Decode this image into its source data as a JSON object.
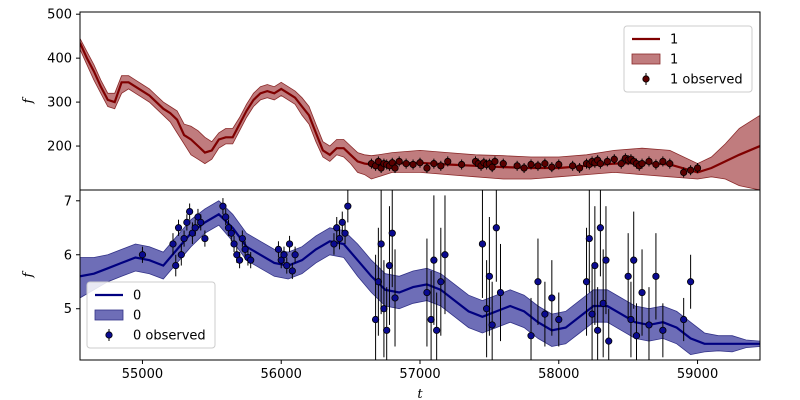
{
  "chart_data": [
    {
      "type": "line",
      "panel": "top",
      "xlabel": "",
      "ylabel": "f",
      "xlim": [
        54550,
        59450
      ],
      "ylim": [
        100,
        505
      ],
      "yticks": [
        200,
        300,
        400,
        500
      ],
      "show_x_ticklabels": false,
      "legend_position": "top-right",
      "legend": [
        "1",
        "1",
        "1 observed"
      ],
      "colors": {
        "line": "#7f0000",
        "band": "#b56567",
        "band_edge": "#8b2a2a",
        "marker": "#5a0000"
      },
      "series": [
        {
          "name": "1",
          "kind": "mean",
          "x": [
            54550,
            54600,
            54650,
            54700,
            54750,
            54800,
            54850,
            54900,
            54950,
            55000,
            55050,
            55100,
            55150,
            55200,
            55250,
            55300,
            55350,
            55400,
            55450,
            55500,
            55550,
            55600,
            55650,
            55700,
            55750,
            55800,
            55850,
            55900,
            55950,
            56000,
            56050,
            56100,
            56150,
            56200,
            56250,
            56300,
            56350,
            56400,
            56450,
            56500,
            56550,
            56600,
            56650,
            56700,
            56800,
            57000,
            57200,
            57400,
            57600,
            57800,
            58000,
            58200,
            58400,
            58600,
            58800,
            59000,
            59100,
            59200,
            59300,
            59450
          ],
          "y": [
            435,
            400,
            370,
            335,
            305,
            300,
            345,
            345,
            335,
            325,
            315,
            300,
            285,
            275,
            260,
            225,
            215,
            200,
            185,
            190,
            215,
            220,
            220,
            250,
            280,
            305,
            320,
            325,
            320,
            330,
            320,
            310,
            290,
            270,
            230,
            190,
            180,
            195,
            195,
            180,
            165,
            160,
            158,
            157,
            160,
            162,
            158,
            155,
            152,
            150,
            150,
            155,
            160,
            162,
            158,
            140,
            150,
            165,
            180,
            200
          ]
        },
        {
          "name": "1",
          "kind": "band",
          "x": [
            54550,
            54600,
            54650,
            54700,
            54750,
            54800,
            54850,
            54900,
            54950,
            55000,
            55050,
            55100,
            55150,
            55200,
            55250,
            55300,
            55350,
            55400,
            55450,
            55500,
            55550,
            55600,
            55650,
            55700,
            55750,
            55800,
            55850,
            55900,
            55950,
            56000,
            56050,
            56100,
            56150,
            56200,
            56250,
            56300,
            56350,
            56400,
            56450,
            56500,
            56550,
            56600,
            56650,
            56700,
            56800,
            57000,
            57200,
            57400,
            57600,
            57800,
            58000,
            58200,
            58400,
            58600,
            58800,
            59000,
            59100,
            59200,
            59300,
            59450
          ],
          "lower": [
            420,
            385,
            350,
            320,
            290,
            285,
            320,
            330,
            320,
            310,
            300,
            285,
            270,
            255,
            230,
            205,
            180,
            170,
            160,
            170,
            195,
            205,
            205,
            235,
            265,
            290,
            305,
            310,
            305,
            315,
            305,
            295,
            270,
            250,
            210,
            175,
            165,
            180,
            175,
            160,
            140,
            135,
            125,
            130,
            140,
            140,
            135,
            130,
            125,
            125,
            130,
            135,
            140,
            135,
            130,
            125,
            130,
            125,
            110,
            100
          ],
          "upper": [
            445,
            415,
            385,
            350,
            320,
            320,
            360,
            360,
            350,
            340,
            330,
            315,
            300,
            290,
            280,
            250,
            245,
            235,
            220,
            210,
            230,
            240,
            240,
            265,
            295,
            320,
            335,
            340,
            335,
            345,
            335,
            325,
            310,
            290,
            250,
            210,
            200,
            215,
            215,
            200,
            185,
            180,
            178,
            180,
            185,
            190,
            185,
            180,
            178,
            175,
            175,
            180,
            190,
            195,
            190,
            160,
            175,
            205,
            240,
            270
          ]
        },
        {
          "name": "1 observed",
          "kind": "observed",
          "x": [
            56650,
            56680,
            56700,
            56720,
            56740,
            56760,
            56780,
            56800,
            56820,
            56850,
            56900,
            56950,
            57000,
            57050,
            57100,
            57150,
            57200,
            57300,
            57400,
            57420,
            57440,
            57460,
            57480,
            57500,
            57520,
            57540,
            57600,
            57700,
            57750,
            57800,
            57850,
            57900,
            57950,
            58000,
            58100,
            58150,
            58200,
            58220,
            58240,
            58260,
            58280,
            58300,
            58350,
            58400,
            58450,
            58480,
            58500,
            58520,
            58540,
            58560,
            58580,
            58600,
            58650,
            58700,
            58750,
            58800,
            58900,
            58950,
            59000
          ],
          "y": [
            160,
            155,
            165,
            150,
            160,
            158,
            155,
            162,
            150,
            165,
            160,
            158,
            162,
            150,
            160,
            155,
            165,
            158,
            165,
            160,
            155,
            162,
            158,
            160,
            152,
            165,
            160,
            155,
            150,
            158,
            155,
            160,
            152,
            158,
            155,
            150,
            160,
            158,
            165,
            162,
            168,
            160,
            165,
            170,
            160,
            172,
            168,
            170,
            165,
            160,
            155,
            160,
            165,
            158,
            165,
            160,
            140,
            145,
            150
          ]
        }
      ]
    },
    {
      "type": "line",
      "panel": "bottom",
      "xlabel": "t",
      "ylabel": "f",
      "xlim": [
        54550,
        59450
      ],
      "ylim": [
        4.05,
        7.2
      ],
      "yticks": [
        5,
        6,
        7
      ],
      "xticks": [
        55000,
        56000,
        57000,
        58000,
        59000
      ],
      "show_x_ticklabels": true,
      "legend_position": "lower-left",
      "legend": [
        "0",
        "0",
        "0 observed"
      ],
      "colors": {
        "line": "#000080",
        "band": "#5555aa",
        "band_edge": "#333388",
        "marker": "#0a0a90"
      },
      "series": [
        {
          "name": "0",
          "kind": "mean",
          "x": [
            54550,
            54650,
            54750,
            54850,
            54950,
            55050,
            55150,
            55250,
            55350,
            55450,
            55550,
            55650,
            55750,
            55850,
            55950,
            56050,
            56150,
            56250,
            56350,
            56450,
            56550,
            56650,
            56750,
            56850,
            56950,
            57050,
            57150,
            57250,
            57350,
            57450,
            57550,
            57650,
            57750,
            57850,
            57950,
            58050,
            58150,
            58250,
            58350,
            58450,
            58550,
            58650,
            58750,
            58850,
            58950,
            59050,
            59150,
            59250,
            59350,
            59450
          ],
          "y": [
            5.6,
            5.65,
            5.75,
            5.85,
            5.95,
            5.9,
            5.8,
            6.1,
            6.4,
            6.6,
            6.75,
            6.5,
            6.15,
            6.0,
            5.85,
            5.8,
            5.9,
            6.1,
            6.25,
            6.2,
            5.9,
            5.6,
            5.35,
            5.3,
            5.4,
            5.45,
            5.35,
            5.15,
            4.95,
            4.85,
            4.95,
            5.05,
            4.95,
            4.75,
            4.6,
            4.65,
            4.85,
            5.05,
            5.05,
            4.9,
            4.75,
            4.7,
            4.75,
            4.65,
            4.45,
            4.35,
            4.35,
            4.35,
            4.35,
            4.35
          ]
        },
        {
          "name": "0",
          "kind": "band",
          "x": [
            54550,
            54650,
            54750,
            54850,
            54950,
            55050,
            55150,
            55250,
            55350,
            55450,
            55550,
            55650,
            55750,
            55850,
            55950,
            56050,
            56150,
            56250,
            56350,
            56450,
            56550,
            56650,
            56750,
            56850,
            56950,
            57050,
            57150,
            57250,
            57350,
            57450,
            57550,
            57650,
            57750,
            57850,
            57950,
            58050,
            58150,
            58250,
            58350,
            58450,
            58550,
            58650,
            58750,
            58850,
            58950,
            59050,
            59150,
            59250,
            59350,
            59450
          ],
          "lower": [
            5.2,
            5.35,
            5.5,
            5.6,
            5.7,
            5.65,
            5.55,
            5.85,
            6.15,
            6.4,
            6.55,
            6.25,
            5.9,
            5.75,
            5.6,
            5.55,
            5.65,
            5.85,
            6.0,
            5.95,
            5.6,
            5.3,
            5.05,
            5.0,
            5.1,
            5.15,
            5.05,
            4.85,
            4.65,
            4.55,
            4.65,
            4.75,
            4.65,
            4.45,
            4.3,
            4.35,
            4.55,
            4.75,
            4.75,
            4.6,
            4.45,
            4.4,
            4.45,
            4.35,
            4.15,
            4.2,
            4.22,
            4.2,
            4.28,
            4.3
          ],
          "upper": [
            5.95,
            5.95,
            6.0,
            6.1,
            6.2,
            6.15,
            6.05,
            6.35,
            6.65,
            6.85,
            7.0,
            6.75,
            6.4,
            6.25,
            6.1,
            6.05,
            6.15,
            6.35,
            6.5,
            6.45,
            6.2,
            5.9,
            5.65,
            5.6,
            5.7,
            5.75,
            5.65,
            5.45,
            5.25,
            5.15,
            5.25,
            5.35,
            5.25,
            5.05,
            4.9,
            4.95,
            5.15,
            5.35,
            5.35,
            5.2,
            5.05,
            5.0,
            5.05,
            4.95,
            4.75,
            4.55,
            4.5,
            4.5,
            4.42,
            4.4
          ]
        },
        {
          "name": "0 observed",
          "kind": "observed",
          "x": [
            55000,
            55220,
            55240,
            55260,
            55280,
            55300,
            55320,
            55340,
            55360,
            55380,
            55400,
            55420,
            55450,
            55580,
            55600,
            55620,
            55640,
            55660,
            55680,
            55700,
            55720,
            55740,
            55760,
            55780,
            55980,
            56000,
            56020,
            56040,
            56060,
            56080,
            56100,
            56380,
            56400,
            56420,
            56440,
            56460,
            56480,
            56680,
            56700,
            56720,
            56740,
            56760,
            56780,
            56800,
            56820,
            57050,
            57080,
            57100,
            57120,
            57150,
            57180,
            57450,
            57480,
            57500,
            57520,
            57550,
            57580,
            57800,
            57850,
            57900,
            57950,
            58000,
            58200,
            58220,
            58240,
            58260,
            58280,
            58300,
            58320,
            58340,
            58360,
            58500,
            58520,
            58540,
            58560,
            58600,
            58650,
            58700,
            58750,
            58900,
            58950
          ],
          "y": [
            6.0,
            6.2,
            5.8,
            6.5,
            6.0,
            6.3,
            6.6,
            6.8,
            6.4,
            6.5,
            6.7,
            6.6,
            6.3,
            6.9,
            6.7,
            6.5,
            6.4,
            6.2,
            6.0,
            5.9,
            6.3,
            6.1,
            5.95,
            5.9,
            6.1,
            5.9,
            6.0,
            5.8,
            6.2,
            5.7,
            6.0,
            6.2,
            6.5,
            6.3,
            6.6,
            6.4,
            6.9,
            4.8,
            5.5,
            6.2,
            5.0,
            4.6,
            5.8,
            6.4,
            5.2,
            5.3,
            4.8,
            5.9,
            4.6,
            5.5,
            6.0,
            6.2,
            5.0,
            5.6,
            4.7,
            6.5,
            5.3,
            4.5,
            5.5,
            4.9,
            5.2,
            4.8,
            5.5,
            6.3,
            4.9,
            5.8,
            4.6,
            6.5,
            5.1,
            5.9,
            4.4,
            5.6,
            4.8,
            5.9,
            4.5,
            5.3,
            4.7,
            5.6,
            4.6,
            4.8,
            5.5
          ],
          "err": [
            0.15,
            0.2,
            0.2,
            0.15,
            0.2,
            0.15,
            0.15,
            0.15,
            0.2,
            0.15,
            0.15,
            0.15,
            0.15,
            0.15,
            0.15,
            0.15,
            0.15,
            0.15,
            0.15,
            0.15,
            0.15,
            0.15,
            0.15,
            0.15,
            0.15,
            0.15,
            0.15,
            0.15,
            0.15,
            0.15,
            0.15,
            0.2,
            0.2,
            0.2,
            0.2,
            0.2,
            0.3,
            1.2,
            1.0,
            1.3,
            0.9,
            0.8,
            1.1,
            1.0,
            0.9,
            1.0,
            0.9,
            1.2,
            0.7,
            1.0,
            1.1,
            1.0,
            0.9,
            1.1,
            0.8,
            1.0,
            0.9,
            0.7,
            0.8,
            0.6,
            0.7,
            0.5,
            1.0,
            1.0,
            0.9,
            1.1,
            0.8,
            0.9,
            1.0,
            1.0,
            0.6,
            0.8,
            0.7,
            0.9,
            0.6,
            0.8,
            0.7,
            0.8,
            0.5,
            0.4,
            0.5
          ]
        }
      ]
    }
  ]
}
